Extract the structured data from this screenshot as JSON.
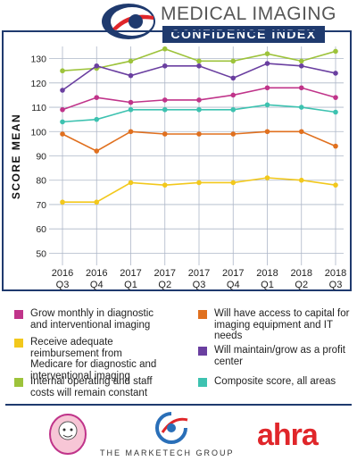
{
  "header": {
    "title_line1": "MEDICAL IMAGING",
    "title_line2": "CONFIDENCE INDEX"
  },
  "chart_data": {
    "type": "line",
    "ylabel": "SCORE MEAN",
    "ylim": [
      45,
      135
    ],
    "yticks": [
      50,
      60,
      70,
      80,
      90,
      100,
      110,
      120,
      130
    ],
    "grid": true,
    "categories": [
      [
        "2016",
        "Q3"
      ],
      [
        "2016",
        "Q4"
      ],
      [
        "2017",
        "Q1"
      ],
      [
        "2017",
        "Q2"
      ],
      [
        "2017",
        "Q3"
      ],
      [
        "2017",
        "Q4"
      ],
      [
        "2018",
        "Q1"
      ],
      [
        "2018",
        "Q2"
      ],
      [
        "2018",
        "Q3"
      ]
    ],
    "series": [
      {
        "name": "Grow monthly in diagnostic and interventional imaging",
        "color": "#c0348a",
        "values": [
          109,
          114,
          112,
          113,
          113,
          115,
          118,
          118,
          114
        ]
      },
      {
        "name": "Receive adequate reimbursement from Medicare for diagnostic and interventional imaging",
        "color": "#f2c81c",
        "values": [
          71,
          71,
          79,
          78,
          79,
          79,
          81,
          80,
          78
        ]
      },
      {
        "name": "Internal operating and staff costs will remain constant",
        "color": "#9dc33b",
        "values": [
          125,
          126,
          129,
          134,
          129,
          129,
          132,
          129,
          133
        ]
      },
      {
        "name": "Will have access to capital for imaging equipment and IT needs",
        "color": "#e0701f",
        "values": [
          99,
          92,
          100,
          99,
          99,
          99,
          100,
          100,
          94
        ]
      },
      {
        "name": "Will maintain/grow as a profit center",
        "color": "#6a3fa0",
        "values": [
          117,
          127,
          123,
          127,
          127,
          122,
          128,
          127,
          124
        ]
      },
      {
        "name": "Composite score, all areas",
        "color": "#3dc2b0",
        "values": [
          104,
          105,
          109,
          109,
          109,
          109,
          111,
          110,
          108
        ]
      }
    ]
  },
  "legend": {
    "items": [
      {
        "text": "Grow monthly in diagnostic and interventional imaging",
        "color": "#c0348a"
      },
      {
        "text": "Will have access to capital for imaging equipment and IT needs",
        "color": "#e0701f"
      },
      {
        "text": "Receive adequate reimbursement from Medicare for diagnostic and interventional imaging",
        "color": "#f2c81c"
      },
      {
        "text": "Will maintain/grow as a profit center",
        "color": "#6a3fa0"
      },
      {
        "text": "Internal operating and staff costs will remain constant",
        "color": "#9dc33b"
      },
      {
        "text": "Composite score, all areas",
        "color": "#3dc2b0"
      }
    ]
  },
  "footer": {
    "company": "THE MARKETECH GROUP",
    "brand": "ahra"
  }
}
